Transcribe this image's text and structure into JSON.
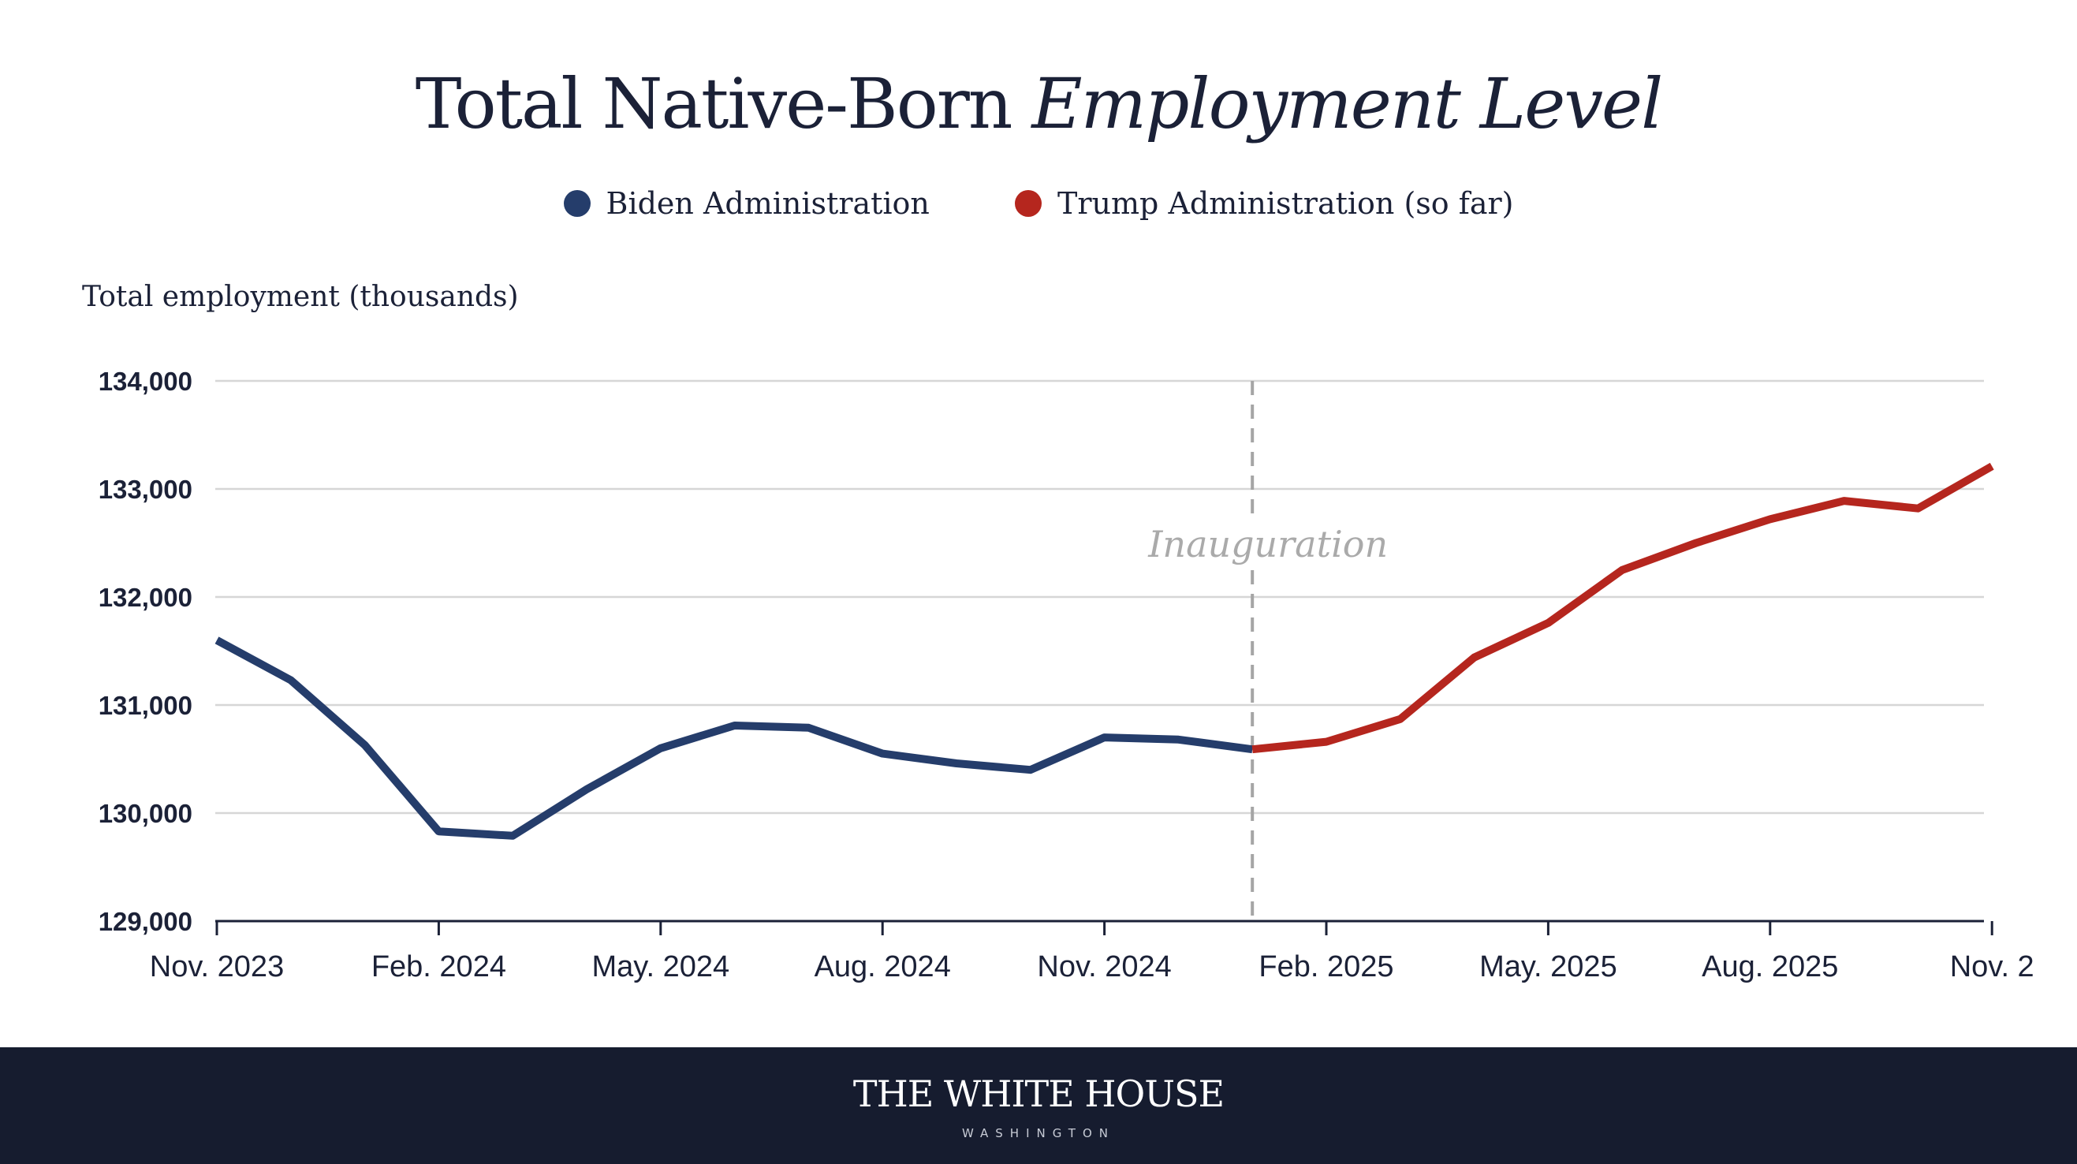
{
  "title": {
    "regular": "Total Native-Born ",
    "italic": "Employment Level"
  },
  "legend": [
    {
      "label": "Biden Administration",
      "color": "#253d6b"
    },
    {
      "label": "Trump Administration (so far)",
      "color": "#b5261e"
    }
  ],
  "footer": {
    "brand": "THE WHITE HOUSE",
    "sub": "WASHINGTON"
  },
  "chart_data": {
    "type": "line",
    "ylabel": "Total employment (thousands)",
    "ylim": [
      129000,
      134000
    ],
    "yticks": [
      {
        "value": 134000,
        "label": "134,000"
      },
      {
        "value": 133000,
        "label": "133,000"
      },
      {
        "value": 132000,
        "label": "132,000"
      },
      {
        "value": 131000,
        "label": "131,000"
      },
      {
        "value": 130000,
        "label": "130,000"
      },
      {
        "value": 129000,
        "label": "129,000"
      }
    ],
    "x": [
      "2023-11",
      "2023-12",
      "2024-01",
      "2024-02",
      "2024-03",
      "2024-04",
      "2024-05",
      "2024-06",
      "2024-07",
      "2024-08",
      "2024-09",
      "2024-10",
      "2024-11",
      "2024-12",
      "2025-01",
      "2025-02",
      "2025-03",
      "2025-04",
      "2025-05",
      "2025-06",
      "2025-07",
      "2025-08",
      "2025-09",
      "2025-10",
      "2025-11"
    ],
    "xticks": [
      {
        "x": "2023-11",
        "label": "Nov. 2023"
      },
      {
        "x": "2024-02",
        "label": "Feb. 2024"
      },
      {
        "x": "2024-05",
        "label": "May. 2024"
      },
      {
        "x": "2024-08",
        "label": "Aug. 2024"
      },
      {
        "x": "2024-11",
        "label": "Nov. 2024"
      },
      {
        "x": "2025-02",
        "label": "Feb. 2025"
      },
      {
        "x": "2025-05",
        "label": "May. 2025"
      },
      {
        "x": "2025-08",
        "label": "Aug. 2025"
      },
      {
        "x": "2025-11",
        "label": "Nov. 2"
      }
    ],
    "series": [
      {
        "name": "Biden Administration",
        "color": "#253d6b",
        "x": [
          "2023-11",
          "2023-12",
          "2024-01",
          "2024-02",
          "2024-03",
          "2024-04",
          "2024-05",
          "2024-06",
          "2024-07",
          "2024-08",
          "2024-09",
          "2024-10",
          "2024-11",
          "2024-12",
          "2025-01"
        ],
        "values": [
          131600,
          131230,
          130630,
          129830,
          129790,
          130220,
          130600,
          130810,
          130790,
          130550,
          130460,
          130400,
          130700,
          130680,
          130590
        ]
      },
      {
        "name": "Trump Administration (so far)",
        "color": "#b5261e",
        "x": [
          "2025-01",
          "2025-02",
          "2025-03",
          "2025-04",
          "2025-05",
          "2025-06",
          "2025-07",
          "2025-08",
          "2025-09",
          "2025-10",
          "2025-11"
        ],
        "values": [
          130590,
          130660,
          130870,
          131440,
          131760,
          132250,
          132500,
          132720,
          132890,
          132820,
          133210
        ]
      }
    ],
    "annotation": {
      "x": "2025-01",
      "label": "Inauguration"
    },
    "grid": true
  }
}
